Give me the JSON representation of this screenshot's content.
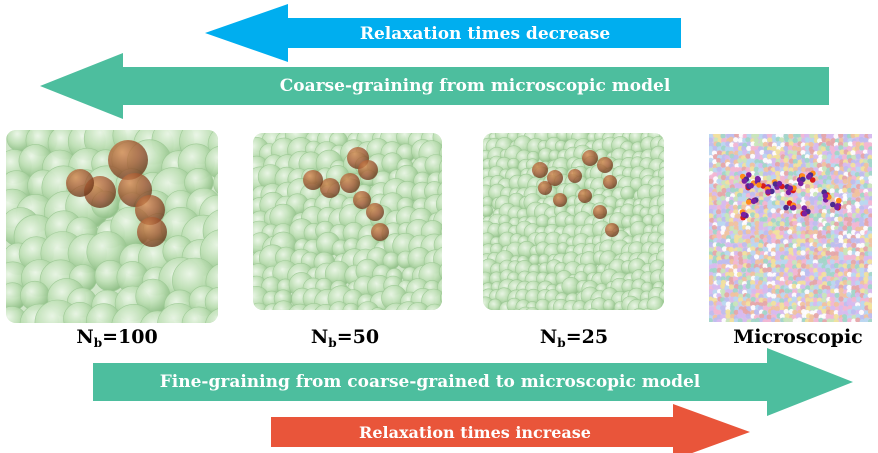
{
  "colors": {
    "blue_arrow": "#00aeef",
    "teal_arrow": "#4dbe9e",
    "red_arrow": "#e9553a",
    "bead_green": "#b9dcb0",
    "bead_edge": "#8fbf86",
    "path_brown": "#8b4a2a"
  },
  "arrows": {
    "top_blue": {
      "label": "Relaxation times decrease",
      "direction": "left"
    },
    "top_teal": {
      "label": "Coarse-graining  from microscopic model",
      "direction": "left"
    },
    "bottom_teal": {
      "label": "Fine-graining  from coarse-grained to microscopic model",
      "direction": "right"
    },
    "bottom_red": {
      "label": "Relaxation times increase",
      "direction": "right"
    }
  },
  "panels": [
    {
      "kind": "coarse",
      "label_main": "N",
      "label_sub": "b",
      "label_value": "=100"
    },
    {
      "kind": "coarse",
      "label_main": "N",
      "label_sub": "b",
      "label_value": "=50"
    },
    {
      "kind": "coarse",
      "label_main": "N",
      "label_sub": "b",
      "label_value": "=25"
    },
    {
      "kind": "microscopic",
      "label_main": "Microscopic",
      "label_sub": "",
      "label_value": ""
    }
  ]
}
